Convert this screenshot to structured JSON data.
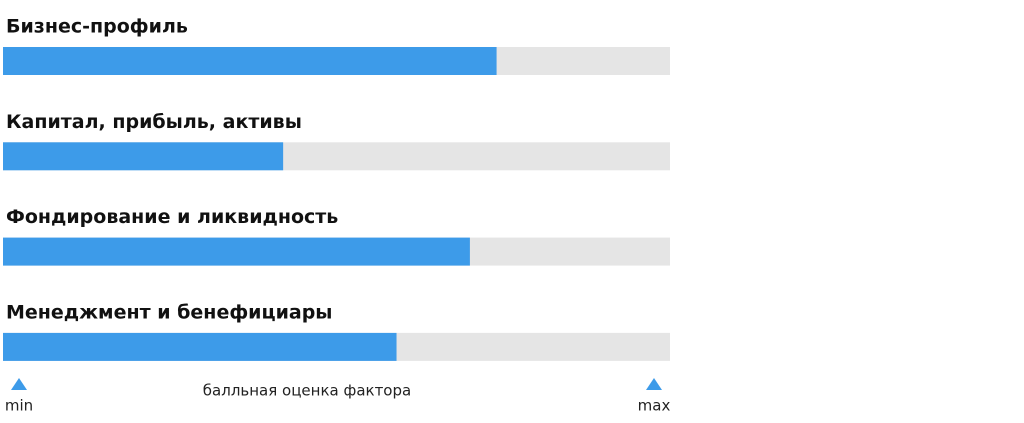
{
  "chart_data": {
    "type": "bar",
    "orientation": "horizontal",
    "categories": [
      "Бизнес-профиль",
      "Капитал, прибыль, активы",
      "Фондирование и ликвидность",
      "Менеджмент и бенефициары"
    ],
    "values": [
      74,
      42,
      70,
      59
    ],
    "color": "#3d9be9",
    "track_color": "#e5e5e5",
    "xlim": [
      0,
      100
    ],
    "xticks": [
      {
        "value": 0,
        "label": "min"
      },
      {
        "value": 100,
        "label": "max"
      }
    ],
    "xlabel": "балльная оценка фактора"
  }
}
